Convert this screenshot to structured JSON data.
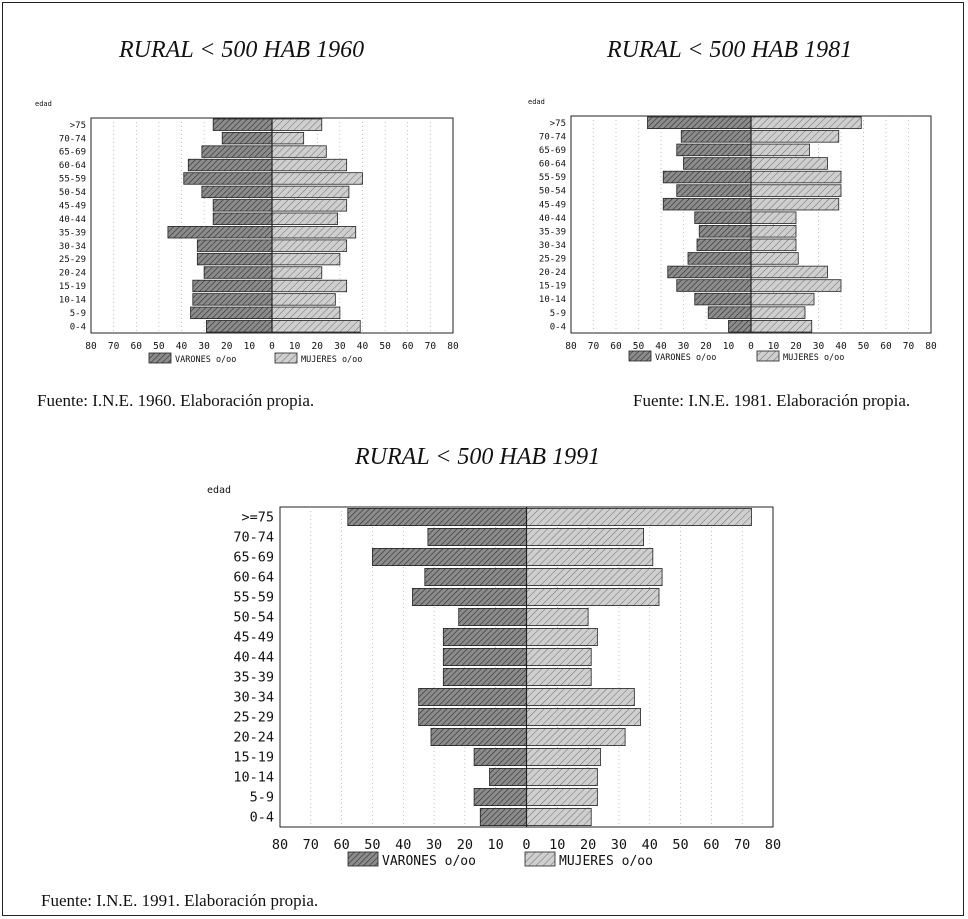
{
  "age_groups_label": "edad",
  "legend": {
    "males": "VARONES o/oo",
    "females": "MUJERES o/oo"
  },
  "colors": {
    "male_fill": "#8c8c8c",
    "female_fill": "#cfcfcf",
    "line": "#222222",
    "grid": "#9a9a9a"
  },
  "chart_data": [
    {
      "type": "bar",
      "orientation": "horizontal-population-pyramid",
      "title": "RURAL < 500 HAB 1960",
      "source": "Fuente: I.N.E. 1960. Elaboración propia.",
      "ylabel": "edad",
      "categories": [
        ">75",
        "70-74",
        "65-69",
        "60-64",
        "55-59",
        "50-54",
        "45-49",
        "40-44",
        "35-39",
        "30-34",
        "25-29",
        "20-24",
        "15-19",
        "10-14",
        "5-9",
        "0-4"
      ],
      "xticks": [
        "80",
        "70",
        "60",
        "50",
        "40",
        "30",
        "20",
        "10",
        "0",
        "10",
        "20",
        "30",
        "40",
        "50",
        "60",
        "70",
        "80"
      ],
      "xlim": [
        -80,
        80
      ],
      "grid": true,
      "series": [
        {
          "name": "VARONES o/oo",
          "values": [
            26,
            22,
            31,
            37,
            39,
            31,
            26,
            26,
            46,
            33,
            33,
            30,
            35,
            35,
            36,
            29
          ]
        },
        {
          "name": "MUJERES o/oo",
          "values": [
            22,
            14,
            24,
            33,
            40,
            34,
            33,
            29,
            37,
            33,
            30,
            22,
            33,
            28,
            30,
            39
          ]
        }
      ]
    },
    {
      "type": "bar",
      "orientation": "horizontal-population-pyramid",
      "title": "RURAL < 500 HAB 1981",
      "source": "Fuente: I.N.E. 1981. Elaboración propia.",
      "ylabel": "edad",
      "categories": [
        ">75",
        "70-74",
        "65-69",
        "60-64",
        "55-59",
        "50-54",
        "45-49",
        "40-44",
        "35-39",
        "30-34",
        "25-29",
        "20-24",
        "15-19",
        "10-14",
        "5-9",
        "0-4"
      ],
      "xticks": [
        "80",
        "70",
        "60",
        "50",
        "40",
        "30",
        "20",
        "10",
        "0",
        "10",
        "20",
        "30",
        "40",
        "50",
        "60",
        "70",
        "80"
      ],
      "xlim": [
        -80,
        80
      ],
      "grid": true,
      "series": [
        {
          "name": "VARONES o/oo",
          "values": [
            46,
            31,
            33,
            30,
            39,
            33,
            39,
            25,
            23,
            24,
            28,
            37,
            33,
            25,
            19,
            10
          ]
        },
        {
          "name": "MUJERES o/oo",
          "values": [
            49,
            39,
            26,
            34,
            40,
            40,
            39,
            20,
            20,
            20,
            21,
            34,
            40,
            28,
            24,
            27
          ]
        }
      ]
    },
    {
      "type": "bar",
      "orientation": "horizontal-population-pyramid",
      "title": "RURAL < 500 HAB 1991",
      "source": "Fuente: I.N.E. 1991. Elaboración propia.",
      "ylabel": "edad",
      "categories": [
        ">=75",
        "70-74",
        "65-69",
        "60-64",
        "55-59",
        "50-54",
        "45-49",
        "40-44",
        "35-39",
        "30-34",
        "25-29",
        "20-24",
        "15-19",
        "10-14",
        "5-9",
        "0-4"
      ],
      "xticks": [
        "80",
        "70",
        "60",
        "50",
        "40",
        "30",
        "20",
        "10",
        "0",
        "10",
        "20",
        "30",
        "40",
        "50",
        "60",
        "70",
        "80"
      ],
      "xlim": [
        -80,
        80
      ],
      "grid": true,
      "series": [
        {
          "name": "VARONES o/oo",
          "values": [
            58,
            32,
            50,
            33,
            37,
            22,
            27,
            27,
            27,
            35,
            35,
            31,
            17,
            12,
            17,
            15
          ]
        },
        {
          "name": "MUJERES o/oo",
          "values": [
            73,
            38,
            41,
            44,
            43,
            20,
            23,
            21,
            21,
            35,
            37,
            32,
            24,
            23,
            23,
            21
          ]
        }
      ]
    }
  ]
}
